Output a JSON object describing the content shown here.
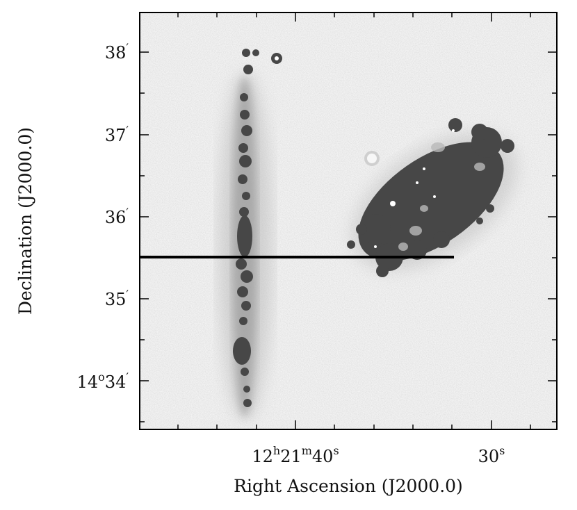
{
  "figure": {
    "xlabel": "Right Ascension (J2000.0)",
    "ylabel": "Declination (J2000.0)",
    "x_tick_labels": [
      {
        "main": "12",
        "sup1": "h",
        "mid1": "21",
        "sup2": "m",
        "mid2": "40",
        "sup3": "s",
        "tail": ""
      },
      {
        "main": "30",
        "sup1": "s",
        "mid1": "",
        "sup2": "",
        "mid2": "",
        "sup3": "",
        "tail": ""
      }
    ],
    "y_tick_labels": [
      {
        "pre": "",
        "deg": "",
        "arc": "38",
        "prime": "′"
      },
      {
        "pre": "",
        "deg": "",
        "arc": "37",
        "prime": "′"
      },
      {
        "pre": "",
        "deg": "",
        "arc": "36",
        "prime": "′"
      },
      {
        "pre": "",
        "deg": "",
        "arc": "35",
        "prime": "′"
      },
      {
        "pre": "14",
        "deg": "o",
        "arc": "34",
        "prime": "′"
      }
    ],
    "colors": {
      "background": "#f2f2f2",
      "emission": "#474747",
      "frame": "#000000",
      "slit_line": "#000000"
    }
  }
}
